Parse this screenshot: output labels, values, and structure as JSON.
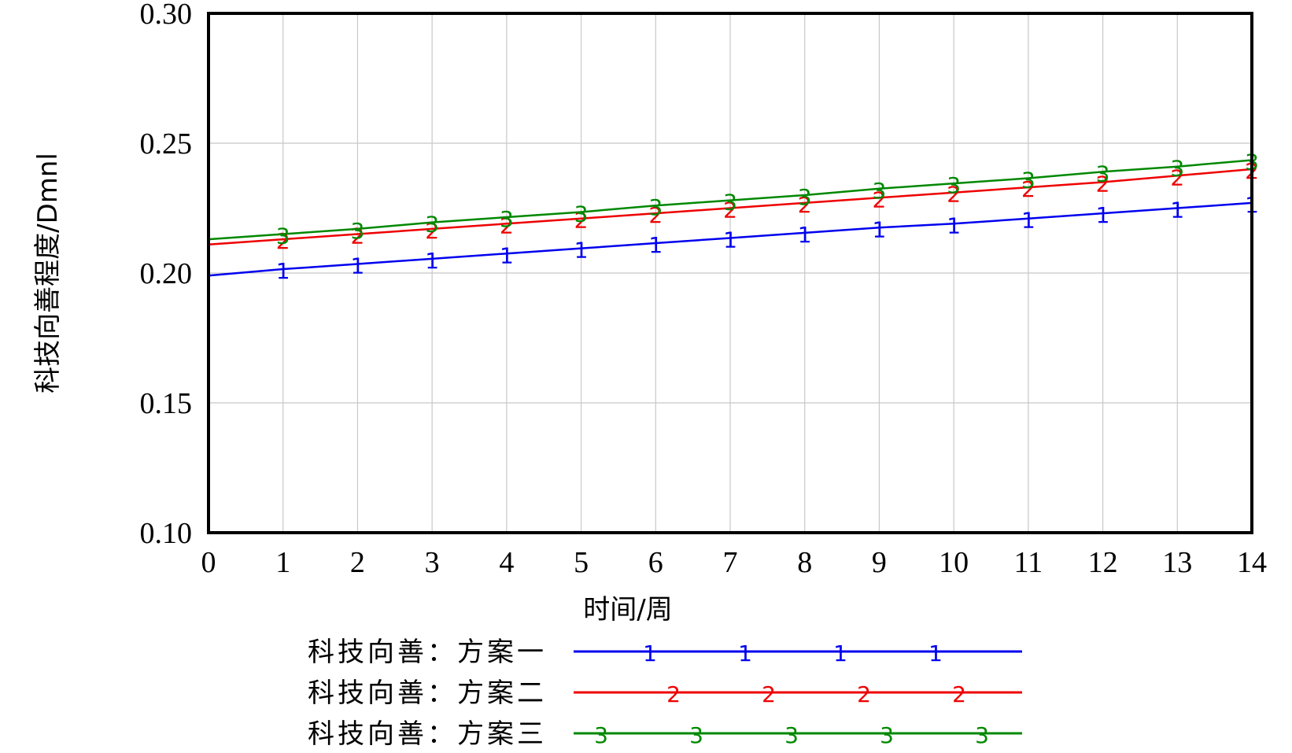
{
  "chart_data": {
    "type": "line",
    "title": "",
    "xlabel": "时间/周",
    "ylabel": "科技向善程度/Dmnl",
    "xlim": [
      0,
      14
    ],
    "ylim": [
      0.1,
      0.3
    ],
    "xticks": [
      "0",
      "1",
      "2",
      "3",
      "4",
      "5",
      "6",
      "7",
      "8",
      "9",
      "10",
      "11",
      "12",
      "13",
      "14"
    ],
    "yticks": [
      "0.30",
      "0.25",
      "0.20",
      "0.15",
      "0.10"
    ],
    "grid": true,
    "legend_position": "bottom",
    "x": [
      0,
      1,
      2,
      3,
      4,
      5,
      6,
      7,
      8,
      9,
      10,
      11,
      12,
      13,
      14
    ],
    "series": [
      {
        "name": "科技向善：方案一",
        "marker": "1",
        "color": "#0000ee",
        "values": [
          0.199,
          0.2015,
          0.2035,
          0.2055,
          0.2075,
          0.2095,
          0.2115,
          0.2135,
          0.2155,
          0.2175,
          0.219,
          0.221,
          0.223,
          0.225,
          0.227
        ]
      },
      {
        "name": "科技向善：方案二",
        "marker": "2",
        "color": "#ee0000",
        "values": [
          0.211,
          0.213,
          0.215,
          0.217,
          0.219,
          0.221,
          0.223,
          0.225,
          0.227,
          0.229,
          0.231,
          0.233,
          0.235,
          0.2375,
          0.24
        ]
      },
      {
        "name": "科技向善：方案三",
        "marker": "3",
        "color": "#008800",
        "values": [
          0.213,
          0.215,
          0.217,
          0.2195,
          0.2215,
          0.2235,
          0.226,
          0.228,
          0.23,
          0.2325,
          0.2345,
          0.2365,
          0.239,
          0.241,
          0.2435
        ]
      }
    ]
  }
}
